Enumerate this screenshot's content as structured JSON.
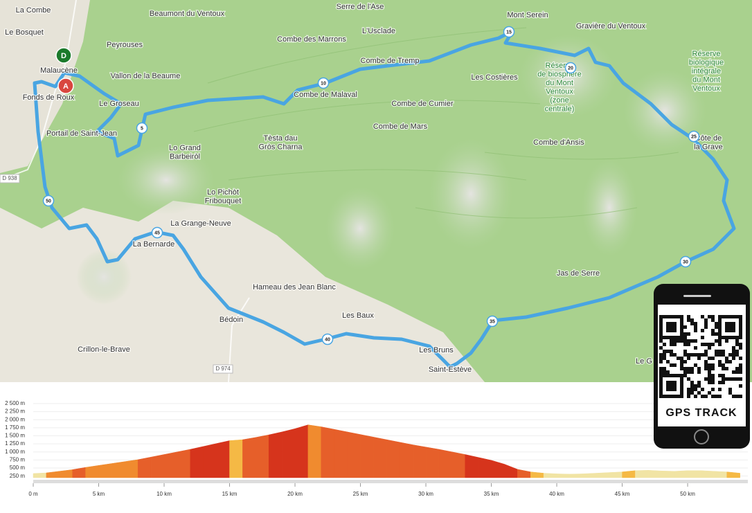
{
  "map": {
    "places": [
      {
        "lines": [
          "La Combe"
        ]
      },
      {
        "lines": [
          "Le Bosquet"
        ]
      },
      {
        "lines": [
          "Beaumont du Ventoux"
        ]
      },
      {
        "lines": [
          "Peyrouses"
        ]
      },
      {
        "lines": [
          "Serre de l'Ase"
        ]
      },
      {
        "lines": [
          "L'Usclade"
        ]
      },
      {
        "lines": [
          "Combe des Marrons"
        ]
      },
      {
        "lines": [
          "Mont Serein"
        ]
      },
      {
        "lines": [
          "Gravière du Ventoux"
        ]
      },
      {
        "lines": [
          "Malaucène"
        ]
      },
      {
        "lines": [
          "Vallon de la Beaume"
        ]
      },
      {
        "lines": [
          "Fonds de Roux"
        ]
      },
      {
        "lines": [
          "Le Groseau"
        ]
      },
      {
        "lines": [
          "Combe de Tremp"
        ]
      },
      {
        "lines": [
          "Combe de Malaval"
        ]
      },
      {
        "lines": [
          "Les Costières"
        ]
      },
      {
        "lines": [
          "Réserve",
          "de biosphère",
          "du Mont",
          "Ventoux",
          "(zone",
          "centrale)"
        ]
      },
      {
        "lines": [
          "Réserve",
          "biologique",
          "intégrale",
          "du Mont",
          "Ventoux"
        ]
      },
      {
        "lines": [
          "Combe de Cumier"
        ]
      },
      {
        "lines": [
          "Combe de Mars"
        ]
      },
      {
        "lines": [
          "Portail de Saint-Jean"
        ]
      },
      {
        "lines": [
          "Tèsta dau",
          "Gròs Charna"
        ]
      },
      {
        "lines": [
          "Lo Grand",
          "Barbeiròl"
        ]
      },
      {
        "lines": [
          "Combe d'Ansis"
        ]
      },
      {
        "lines": [
          "Côte de",
          "la Grave"
        ]
      },
      {
        "lines": [
          "Lo Pichòt",
          "Fribouquet"
        ]
      },
      {
        "lines": [
          "La Grange-Neuve"
        ]
      },
      {
        "lines": [
          "La Bernarde"
        ]
      },
      {
        "lines": [
          "Jas de Serre"
        ]
      },
      {
        "lines": [
          "Hameau des Jean Blanc"
        ]
      },
      {
        "lines": [
          "Les Baux"
        ]
      },
      {
        "lines": [
          "Bédoin"
        ]
      },
      {
        "lines": [
          "Crillon-le-Brave"
        ]
      },
      {
        "lines": [
          "Les Bruns"
        ]
      },
      {
        "lines": [
          "Saint-Estève"
        ]
      },
      {
        "lines": [
          "Le G"
        ]
      }
    ],
    "roads": [
      "D 938",
      "D 974"
    ],
    "route_markers": [
      "5",
      "10",
      "15",
      "20",
      "25",
      "30",
      "35",
      "40",
      "45",
      "50"
    ],
    "start_label": "D",
    "end_label": "A"
  },
  "profile": {
    "x": [
      0,
      1,
      2,
      3,
      4,
      5,
      6,
      7,
      8,
      9,
      10,
      11,
      12,
      13,
      14,
      15,
      16,
      17,
      18,
      19,
      20,
      21,
      22,
      23,
      24,
      25,
      26,
      27,
      28,
      29,
      30,
      31,
      32,
      33,
      34,
      35,
      36,
      37,
      38,
      39,
      40,
      41,
      42,
      43,
      44,
      45,
      46,
      47,
      48,
      49,
      50,
      51,
      52,
      53,
      54
    ],
    "elevation": [
      330,
      350,
      400,
      450,
      520,
      580,
      640,
      700,
      760,
      840,
      920,
      1000,
      1080,
      1170,
      1260,
      1350,
      1380,
      1450,
      1530,
      1620,
      1720,
      1840,
      1780,
      1700,
      1620,
      1540,
      1460,
      1380,
      1300,
      1220,
      1150,
      1080,
      1000,
      920,
      830,
      740,
      620,
      460,
      380,
      340,
      320,
      310,
      320,
      340,
      360,
      380,
      420,
      430,
      410,
      400,
      420,
      420,
      400,
      380,
      340
    ],
    "xlim": [
      0,
      54.6
    ],
    "ylim": [
      200,
      2520
    ],
    "xticks": [
      {
        "value": 0,
        "label": "0 m"
      },
      {
        "value": 5,
        "label": "5 km"
      },
      {
        "value": 10,
        "label": "10 km"
      },
      {
        "value": 15,
        "label": "15 km"
      },
      {
        "value": 20,
        "label": "20 km"
      },
      {
        "value": 25,
        "label": "25 km"
      },
      {
        "value": 30,
        "label": "30 km"
      },
      {
        "value": 35,
        "label": "35 km"
      },
      {
        "value": 40,
        "label": "40 km"
      },
      {
        "value": 45,
        "label": "45 km"
      },
      {
        "value": 50,
        "label": "50 km"
      }
    ],
    "yticks": [
      {
        "value": 2500,
        "label": "2 500 m"
      },
      {
        "value": 2250,
        "label": "2 250 m"
      },
      {
        "value": 2000,
        "label": "2 000 m"
      },
      {
        "value": 1750,
        "label": "1 750 m"
      },
      {
        "value": 1500,
        "label": "1 500 m"
      },
      {
        "value": 1250,
        "label": "1 250 m"
      },
      {
        "value": 1000,
        "label": "1 000 m"
      },
      {
        "value": 750,
        "label": "750 m"
      },
      {
        "value": 500,
        "label": "500 m"
      },
      {
        "value": 250,
        "label": "250 m"
      }
    ]
  },
  "qr": {
    "caption": "GPS TRACK"
  }
}
